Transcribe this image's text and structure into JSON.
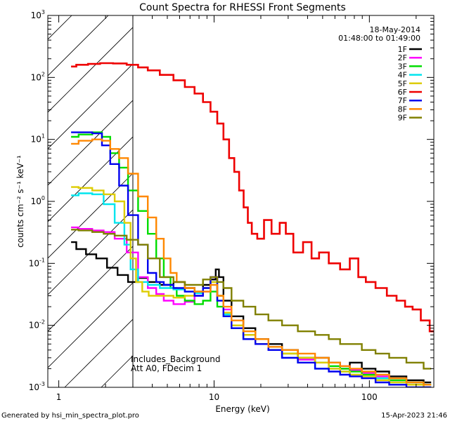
{
  "chart_data": {
    "type": "line",
    "title": "Count Spectra for RHESSI Front Segments",
    "xlabel": "Energy (keV)",
    "ylabel": "counts cm⁻² s⁻¹ keV⁻¹",
    "xscale": "log",
    "yscale": "log",
    "xlim": [
      0.85,
      260
    ],
    "ylim": [
      0.001,
      1000
    ],
    "x_ticks": [
      {
        "value": 1,
        "label": "1"
      },
      {
        "value": 10,
        "label": "10"
      },
      {
        "value": 100,
        "label": "100"
      }
    ],
    "y_ticks": [
      {
        "value": 0.001,
        "base": "10",
        "exp": "-3"
      },
      {
        "value": 0.01,
        "base": "10",
        "exp": "-2"
      },
      {
        "value": 0.1,
        "base": "10",
        "exp": "-1"
      },
      {
        "value": 1,
        "base": "10",
        "exp": "0"
      },
      {
        "value": 10,
        "base": "10",
        "exp": "1"
      },
      {
        "value": 100,
        "base": "10",
        "exp": "2"
      },
      {
        "value": 1000,
        "base": "10",
        "exp": "3"
      }
    ],
    "shaded_region_below_keV": 3,
    "legend_placement": "top-right",
    "series": [
      {
        "name": "1F",
        "color": "#000000",
        "x": [
          1.2,
          1.4,
          1.6,
          1.9,
          2.2,
          2.6,
          3.0,
          3.5,
          4.0,
          5,
          6,
          7,
          8,
          9,
          10,
          10.5,
          11,
          12,
          14,
          17,
          20,
          25,
          30,
          40,
          50,
          60,
          70,
          80,
          100,
          120,
          150,
          200,
          250
        ],
        "values": [
          0.22,
          0.17,
          0.14,
          0.12,
          0.085,
          0.065,
          0.05,
          0.058,
          0.05,
          0.045,
          0.05,
          0.04,
          0.035,
          0.045,
          0.055,
          0.08,
          0.06,
          0.025,
          0.014,
          0.009,
          0.006,
          0.005,
          0.004,
          0.003,
          0.003,
          0.0025,
          0.002,
          0.0025,
          0.002,
          0.0018,
          0.0015,
          0.0013,
          0.0012
        ]
      },
      {
        "name": "2F",
        "color": "#ff00ff",
        "x": [
          1.2,
          1.5,
          1.8,
          2.1,
          2.5,
          3.0,
          3.5,
          4.0,
          4.5,
          5,
          6,
          7,
          8,
          9,
          10,
          11,
          12,
          14,
          17,
          20,
          25,
          30,
          40,
          50,
          60,
          70,
          80,
          100,
          120,
          150,
          200,
          250
        ],
        "values": [
          0.38,
          0.36,
          0.34,
          0.32,
          0.25,
          0.15,
          0.06,
          0.04,
          0.032,
          0.025,
          0.022,
          0.024,
          0.03,
          0.035,
          0.06,
          0.03,
          0.018,
          0.01,
          0.007,
          0.005,
          0.004,
          0.003,
          0.0028,
          0.0025,
          0.002,
          0.0022,
          0.0019,
          0.0017,
          0.0015,
          0.0013,
          0.0012,
          0.001
        ]
      },
      {
        "name": "3F",
        "color": "#00dd00",
        "x": [
          1.2,
          1.5,
          1.8,
          2.0,
          2.3,
          2.6,
          3.0,
          3.5,
          4.0,
          4.5,
          5,
          5.5,
          6,
          7,
          8,
          9,
          10,
          11,
          12,
          14,
          17,
          20,
          25,
          30,
          40,
          50,
          60,
          70,
          80,
          100,
          120,
          150,
          200,
          250
        ],
        "values": [
          11,
          12,
          13,
          11,
          6,
          3.5,
          1.5,
          0.7,
          0.3,
          0.12,
          0.06,
          0.04,
          0.03,
          0.025,
          0.022,
          0.025,
          0.035,
          0.02,
          0.015,
          0.009,
          0.006,
          0.005,
          0.004,
          0.0035,
          0.003,
          0.0025,
          0.0022,
          0.002,
          0.0018,
          0.0016,
          0.0014,
          0.0013,
          0.0012,
          0.0011
        ]
      },
      {
        "name": "4F",
        "color": "#00e5ee",
        "x": [
          1.2,
          1.5,
          1.8,
          2.1,
          2.5,
          2.8,
          3.0,
          3.5,
          4.0,
          5,
          6,
          7,
          8,
          9,
          10,
          11,
          12,
          14,
          17,
          20,
          25,
          30,
          40,
          50,
          60,
          70,
          80,
          100,
          120,
          150,
          200,
          250
        ],
        "values": [
          1.25,
          1.35,
          1.3,
          0.9,
          0.45,
          0.2,
          0.08,
          0.05,
          0.045,
          0.04,
          0.038,
          0.035,
          0.033,
          0.04,
          0.05,
          0.03,
          0.015,
          0.01,
          0.007,
          0.005,
          0.004,
          0.003,
          0.0025,
          0.002,
          0.002,
          0.0018,
          0.0016,
          0.0015,
          0.0014,
          0.0012,
          0.0011,
          0.001
        ]
      },
      {
        "name": "5F",
        "color": "#ddcc00",
        "x": [
          1.2,
          1.5,
          1.8,
          2.1,
          2.5,
          2.8,
          3.0,
          3.3,
          3.6,
          4.0,
          5,
          6,
          7,
          8,
          9,
          10,
          11,
          12,
          14,
          17,
          20,
          25,
          30,
          40,
          50,
          60,
          70,
          80,
          100,
          120,
          150,
          200,
          250
        ],
        "values": [
          1.7,
          1.65,
          1.5,
          1.3,
          1.0,
          0.45,
          0.12,
          0.05,
          0.035,
          0.03,
          0.03,
          0.028,
          0.03,
          0.035,
          0.04,
          0.05,
          0.03,
          0.016,
          0.01,
          0.007,
          0.005,
          0.004,
          0.0035,
          0.003,
          0.0025,
          0.002,
          0.0018,
          0.0016,
          0.0015,
          0.0013,
          0.0012,
          0.0011,
          0.001
        ]
      },
      {
        "name": "6F",
        "color": "#ee0000",
        "x": [
          1.2,
          1.4,
          1.7,
          2.0,
          2.5,
          3.0,
          3.5,
          4.0,
          5,
          6,
          7,
          8,
          9,
          10,
          11,
          12,
          13,
          14,
          15,
          16,
          17,
          18,
          20,
          22,
          25,
          28,
          30,
          35,
          40,
          45,
          50,
          60,
          70,
          80,
          90,
          100,
          120,
          140,
          160,
          180,
          200,
          230,
          260
        ],
        "values": [
          150,
          160,
          165,
          170,
          168,
          160,
          145,
          130,
          110,
          90,
          70,
          55,
          40,
          28,
          18,
          10,
          5,
          3,
          1.5,
          0.8,
          0.45,
          0.3,
          0.25,
          0.5,
          0.3,
          0.45,
          0.3,
          0.15,
          0.22,
          0.12,
          0.15,
          0.1,
          0.08,
          0.12,
          0.06,
          0.05,
          0.04,
          0.03,
          0.025,
          0.02,
          0.018,
          0.012,
          0.008
        ]
      },
      {
        "name": "7F",
        "color": "#0000ee",
        "x": [
          1.2,
          1.5,
          1.8,
          2.0,
          2.3,
          2.6,
          3.0,
          3.5,
          4.0,
          4.5,
          5,
          6,
          7,
          8,
          9,
          10,
          11,
          12,
          14,
          17,
          20,
          25,
          30,
          40,
          50,
          60,
          70,
          80,
          100,
          120,
          150,
          200,
          250
        ],
        "values": [
          13,
          13,
          12.5,
          8,
          4,
          1.8,
          0.6,
          0.2,
          0.07,
          0.05,
          0.045,
          0.04,
          0.035,
          0.03,
          0.04,
          0.06,
          0.025,
          0.014,
          0.009,
          0.006,
          0.005,
          0.004,
          0.003,
          0.0025,
          0.002,
          0.0018,
          0.0016,
          0.0015,
          0.0014,
          0.0012,
          0.0011,
          0.001,
          0.001
        ]
      },
      {
        "name": "8F",
        "color": "#ff8800",
        "x": [
          1.2,
          1.5,
          1.8,
          2.0,
          2.3,
          2.6,
          3.0,
          3.5,
          4.0,
          4.5,
          5,
          5.5,
          6,
          7,
          8,
          9,
          10,
          11,
          12,
          14,
          17,
          20,
          25,
          30,
          40,
          50,
          60,
          70,
          80,
          100,
          120,
          150,
          200,
          250
        ],
        "values": [
          8.5,
          9.5,
          10,
          9.5,
          7,
          5,
          2.8,
          1.2,
          0.55,
          0.25,
          0.12,
          0.07,
          0.05,
          0.04,
          0.035,
          0.035,
          0.045,
          0.03,
          0.02,
          0.012,
          0.008,
          0.006,
          0.0045,
          0.004,
          0.0035,
          0.003,
          0.0025,
          0.0022,
          0.002,
          0.0018,
          0.0016,
          0.0014,
          0.0012,
          0.0011
        ]
      },
      {
        "name": "9F",
        "color": "#808000",
        "x": [
          1.2,
          1.5,
          1.8,
          2.1,
          2.5,
          3.0,
          3.5,
          4.0,
          5,
          6,
          7,
          8,
          9,
          10,
          11,
          12,
          14,
          17,
          20,
          25,
          30,
          40,
          50,
          60,
          70,
          80,
          100,
          120,
          150,
          200,
          250
        ],
        "values": [
          0.35,
          0.34,
          0.32,
          0.3,
          0.28,
          0.24,
          0.2,
          0.12,
          0.06,
          0.05,
          0.045,
          0.045,
          0.055,
          0.06,
          0.05,
          0.04,
          0.025,
          0.02,
          0.015,
          0.012,
          0.01,
          0.008,
          0.007,
          0.006,
          0.005,
          0.005,
          0.004,
          0.0035,
          0.003,
          0.0025,
          0.002
        ]
      }
    ],
    "annotations": {
      "date": "18-May-2014",
      "time_range": "01:48:00 to 01:49:00",
      "notes": [
        "Includes_Background",
        "Att A0, FDecim 1"
      ]
    }
  },
  "footer": {
    "generated_by": "Generated by hsi_min_spectra_plot.pro",
    "timestamp": "15-Apr-2023 21:46"
  }
}
